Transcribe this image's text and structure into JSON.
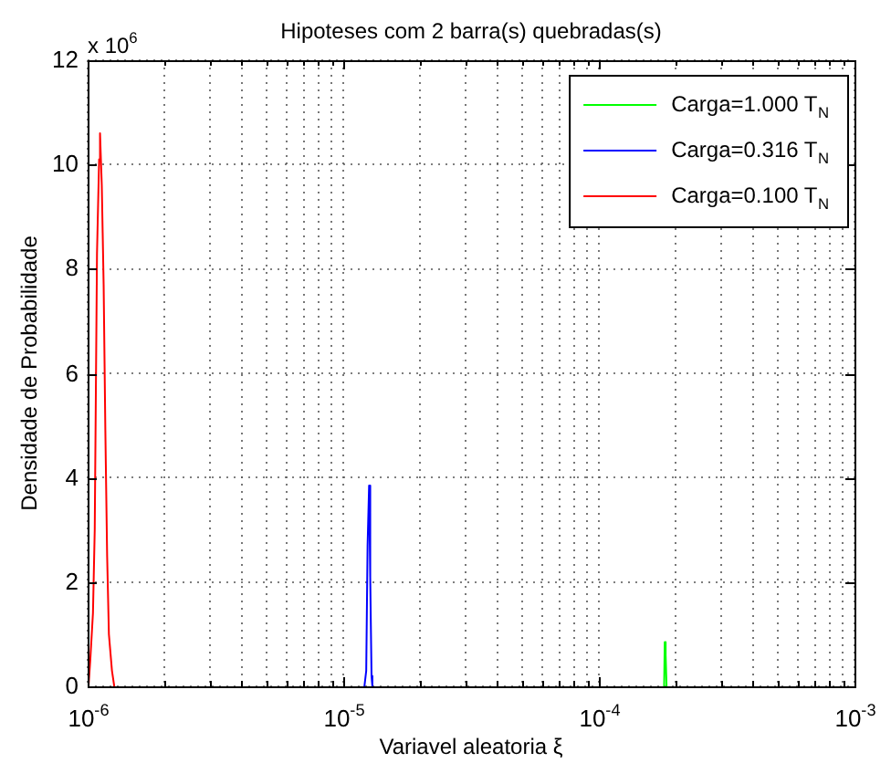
{
  "chart_data": {
    "type": "line",
    "title": "Hipoteses com 2 barra(s) quebradas(s)",
    "xlabel": "Variavel aleatoria ξ",
    "ylabel": "Densidade de Probabilidade",
    "annotations": [
      "x 10$^{6}$"
    ],
    "log": "x",
    "grid": true,
    "legend": "top right",
    "marker": "none",
    "line_style": "solid",
    "xlim": [
      1e-06,
      0.001
    ],
    "ylim": [
      0,
      12
    ],
    "yticks": [
      0,
      2,
      4,
      6,
      8,
      10,
      12
    ],
    "xticks": [
      {
        "value": 1e-06,
        "label": "10$^{-6}$"
      },
      {
        "value": 2e-06,
        "label": null
      },
      {
        "value": 3e-06,
        "label": null
      },
      {
        "value": 4e-06,
        "label": null
      },
      {
        "value": 5e-06,
        "label": null
      },
      {
        "value": 6e-06,
        "label": null
      },
      {
        "value": 7e-06,
        "label": null
      },
      {
        "value": 8e-06,
        "label": null
      },
      {
        "value": 9e-06,
        "label": null
      },
      {
        "value": 1e-05,
        "label": "10$^{-5}$"
      },
      {
        "value": 2e-05,
        "label": null
      },
      {
        "value": 3e-05,
        "label": null
      },
      {
        "value": 4e-05,
        "label": null
      },
      {
        "value": 5e-05,
        "label": null
      },
      {
        "value": 6e-05,
        "label": null
      },
      {
        "value": 7e-05,
        "label": null
      },
      {
        "value": 8e-05,
        "label": null
      },
      {
        "value": 9e-05,
        "label": null
      },
      {
        "value": 0.0001,
        "label": "10$^{-4}$"
      },
      {
        "value": 0.0002,
        "label": null
      },
      {
        "value": 0.0003,
        "label": null
      },
      {
        "value": 0.0004,
        "label": null
      },
      {
        "value": 0.0005,
        "label": null
      },
      {
        "value": 0.0006,
        "label": null
      },
      {
        "value": 0.0007,
        "label": null
      },
      {
        "value": 0.0008,
        "label": null
      },
      {
        "value": 0.0009,
        "label": null
      },
      {
        "value": 0.001,
        "label": "10$^{-3}$"
      }
    ],
    "series": [
      {
        "name": "Carga=1.000 T$_{N}$",
        "color": "#00ff00",
        "x": [
          0.00018,
          0.000181,
          0.0001825,
          0.000184
        ],
        "values": [
          0,
          0.85,
          0.6,
          0
        ]
      },
      {
        "name": "Carga=0.316 T$_{N}$",
        "color": "#0000ff",
        "x": [
          1.21e-05,
          1.23e-05,
          1.245e-05,
          1.262e-05,
          1.275e-05,
          1.29e-05,
          1.3e-05
        ],
        "values": [
          0,
          0.3,
          2.7,
          3.85,
          2.1,
          0.2,
          0
        ]
      },
      {
        "name": "Carga=0.100 T$_{N}$",
        "color": "#ff0000",
        "x": [
          1.008e-06,
          1.024e-06,
          1.049e-06,
          1.066e-06,
          1.088e-06,
          1.109e-06,
          1.118e-06,
          1.136e-06,
          1.155e-06,
          1.173e-06,
          1.192e-06,
          1.211e-06,
          1.245e-06,
          1.271e-06
        ],
        "values": [
          0,
          0.5,
          1.4,
          3.0,
          8.3,
          10.1,
          10.6,
          9.6,
          7.7,
          4.9,
          2.5,
          1.0,
          0.3,
          0
        ]
      }
    ]
  }
}
